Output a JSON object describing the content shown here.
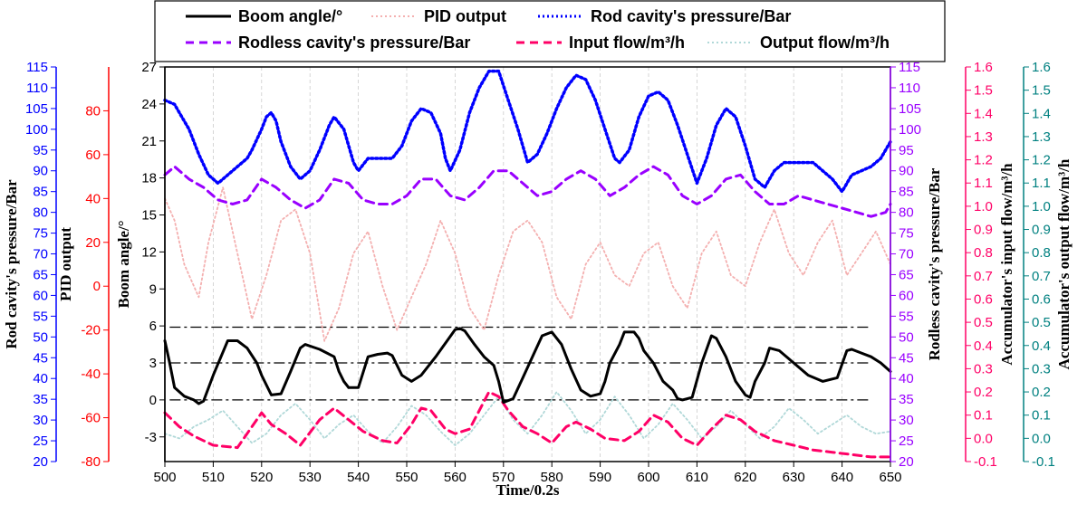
{
  "chart_data": {
    "type": "line",
    "xlabel": "Time/0.2s",
    "x_ticks": [
      500,
      510,
      520,
      530,
      540,
      550,
      560,
      570,
      580,
      590,
      600,
      610,
      620,
      630,
      640,
      650
    ],
    "xlim": [
      500,
      650
    ],
    "axes": [
      {
        "id": "boom",
        "label": "Boom angle/°",
        "side": "left",
        "color": "#000000",
        "ylim": [
          -5,
          27
        ],
        "ticks": [
          -3,
          0,
          3,
          6,
          9,
          12,
          15,
          18,
          21,
          24,
          27
        ]
      },
      {
        "id": "pid",
        "label": "PID output",
        "side": "left",
        "color": "#ff0000",
        "ylim": [
          -80,
          100
        ],
        "ticks": [
          -80,
          -60,
          -40,
          -20,
          0,
          20,
          40,
          60,
          80
        ]
      },
      {
        "id": "rod",
        "label": "Rod cavity's pressure/Bar",
        "side": "left",
        "color": "#0000ff",
        "ylim": [
          20,
          115
        ],
        "ticks": [
          20,
          25,
          30,
          35,
          40,
          45,
          50,
          55,
          60,
          65,
          70,
          75,
          80,
          85,
          90,
          95,
          100,
          105,
          110,
          115
        ]
      },
      {
        "id": "rodless",
        "label": "Rodless cavity's pressure/Bar",
        "side": "right",
        "color": "#9900ff",
        "ylim": [
          20,
          115
        ],
        "ticks": [
          20,
          25,
          30,
          35,
          40,
          45,
          50,
          55,
          60,
          65,
          70,
          75,
          80,
          85,
          90,
          95,
          100,
          105,
          110,
          115
        ]
      },
      {
        "id": "acc_in",
        "label": "Accumulator's input flow/m³/h",
        "side": "right",
        "color": "#ff0066",
        "ylim": [
          -0.1,
          1.6
        ],
        "ticks": [
          "-0.1",
          "0.0",
          "0.1",
          "0.2",
          "0.3",
          "0.4",
          "0.5",
          "0.6",
          "0.7",
          "0.8",
          "0.9",
          "1.0",
          "1.1",
          "1.2",
          "1.3",
          "1.4",
          "1.5",
          "1.6"
        ]
      },
      {
        "id": "acc_out",
        "label": "Accumulator's output flow/m³/h",
        "side": "right",
        "color": "#008080",
        "ylim": [
          -0.1,
          1.6
        ],
        "ticks": [
          "-0.1",
          "0.0",
          "0.1",
          "0.2",
          "0.3",
          "0.4",
          "0.5",
          "0.6",
          "0.7",
          "0.8",
          "0.9",
          "1.0",
          "1.1",
          "1.2",
          "1.3",
          "1.4",
          "1.5",
          "1.6"
        ]
      }
    ],
    "reference_lines": [
      {
        "axis": "boom",
        "y": 5.9
      },
      {
        "axis": "boom",
        "y": 3.0
      },
      {
        "axis": "boom",
        "y": 0.0
      }
    ],
    "legend": {
      "placement": "top-center",
      "entries": [
        {
          "series": "Boom angle/°",
          "style": "solid",
          "color": "#000000"
        },
        {
          "series": "PID output",
          "style": "dotted",
          "color": "#f4b0b0"
        },
        {
          "series": "Rod cavity's pressure/Bar",
          "style": "dotted",
          "color": "#0000ff"
        },
        {
          "series": "Rodless cavity's pressure/Bar",
          "style": "dash",
          "color": "#9900ff"
        },
        {
          "series": "Input flow/m³/h",
          "style": "dash",
          "color": "#ff0066"
        },
        {
          "series": "Output flow/m³/h",
          "style": "dotted",
          "color": "#b0d8d8"
        }
      ]
    },
    "series": [
      {
        "name": "Boom angle/°",
        "axis": "boom",
        "color": "#000000",
        "style": "solid",
        "x": [
          500,
          501,
          502,
          504,
          506,
          507,
          508,
          510,
          513,
          515,
          517,
          519,
          520,
          522,
          524,
          526,
          528,
          529,
          532,
          535,
          536,
          537,
          538,
          540,
          542,
          544,
          546,
          547,
          549,
          551,
          553,
          556,
          558,
          560,
          561,
          562,
          564,
          566,
          568,
          569,
          570,
          572,
          574,
          576,
          578,
          580,
          582,
          584,
          586,
          588,
          590,
          591,
          592,
          594,
          595,
          597,
          598,
          599,
          601,
          603,
          605,
          606,
          607,
          609,
          611,
          613,
          614,
          616,
          618,
          620,
          621,
          622,
          624,
          625,
          627,
          630,
          633,
          636,
          639,
          641,
          642,
          644,
          646,
          648,
          650
        ],
        "y": [
          4.8,
          3.0,
          1.0,
          0.3,
          0.0,
          -0.3,
          -0.1,
          2.0,
          4.8,
          4.8,
          4.2,
          3.0,
          2.0,
          0.4,
          0.5,
          2.3,
          4.2,
          4.5,
          4.1,
          3.5,
          2.3,
          1.5,
          1.0,
          1.0,
          3.5,
          3.7,
          3.8,
          3.6,
          2.0,
          1.5,
          2.0,
          3.5,
          4.6,
          5.7,
          5.8,
          5.6,
          4.5,
          3.5,
          2.8,
          1.5,
          -0.2,
          0.1,
          1.8,
          3.5,
          5.2,
          5.5,
          4.5,
          2.5,
          0.8,
          0.3,
          0.5,
          1.5,
          3.0,
          4.5,
          5.5,
          5.5,
          5.0,
          4.0,
          3.0,
          1.5,
          0.8,
          0.1,
          0.0,
          0.2,
          3.0,
          5.2,
          5.0,
          3.5,
          1.5,
          0.4,
          0.2,
          1.5,
          3.0,
          4.2,
          4.0,
          3.0,
          2.0,
          1.5,
          1.8,
          4.0,
          4.1,
          3.8,
          3.5,
          3.0,
          2.3
        ]
      },
      {
        "name": "PID output",
        "axis": "pid",
        "color": "#f4b0b0",
        "style": "dotted",
        "x": [
          500,
          502,
          504,
          507,
          509,
          512,
          515,
          518,
          521,
          524,
          527,
          530,
          533,
          536,
          539,
          542,
          545,
          548,
          551,
          554,
          557,
          560,
          563,
          566,
          569,
          572,
          575,
          578,
          581,
          584,
          587,
          590,
          593,
          596,
          599,
          602,
          605,
          608,
          611,
          614,
          617,
          620,
          623,
          626,
          629,
          632,
          635,
          638,
          641,
          644,
          647,
          650
        ],
        "y": [
          40,
          30,
          10,
          -5,
          20,
          45,
          15,
          -15,
          5,
          30,
          35,
          15,
          -25,
          -10,
          15,
          25,
          0,
          -20,
          -5,
          10,
          30,
          15,
          -10,
          -20,
          5,
          25,
          30,
          20,
          -5,
          -15,
          10,
          20,
          5,
          0,
          15,
          20,
          0,
          -10,
          15,
          25,
          5,
          0,
          20,
          35,
          15,
          5,
          20,
          30,
          5,
          15,
          25,
          10
        ]
      },
      {
        "name": "Rod cavity's pressure/Bar",
        "axis": "rod",
        "color": "#0000ff",
        "style": "dotted",
        "x": [
          500,
          502,
          503,
          505,
          507,
          509,
          511,
          513,
          515,
          517,
          518,
          520,
          521,
          522,
          523,
          524,
          526,
          528,
          530,
          532,
          534,
          535,
          537,
          539,
          540,
          542,
          545,
          547,
          549,
          551,
          553,
          555,
          557,
          558,
          559,
          561,
          563,
          565,
          567,
          569,
          571,
          573,
          575,
          577,
          579,
          581,
          583,
          585,
          587,
          589,
          591,
          593,
          594,
          596,
          598,
          600,
          602,
          604,
          606,
          608,
          610,
          612,
          614,
          616,
          618,
          620,
          622,
          624,
          626,
          628,
          630,
          632,
          634,
          636,
          638,
          640,
          642,
          644,
          646,
          648,
          650
        ],
        "y": [
          107,
          106,
          104,
          100,
          94,
          89,
          87,
          89,
          91,
          93,
          95,
          100,
          103,
          104,
          102,
          97,
          91,
          88,
          90,
          95,
          101,
          103,
          100,
          92,
          90,
          93,
          93,
          93,
          96,
          102,
          105,
          104,
          99,
          93,
          90,
          95,
          104,
          110,
          114,
          114,
          107,
          100,
          92,
          94,
          99,
          105,
          110,
          113,
          112,
          107,
          100,
          93,
          92,
          95,
          103,
          108,
          109,
          107,
          101,
          94,
          87,
          93,
          101,
          105,
          103,
          96,
          88,
          86,
          90,
          92,
          92,
          92,
          92,
          90,
          88,
          85,
          89,
          90,
          91,
          93,
          97
        ]
      },
      {
        "name": "Rodless cavity's pressure/Bar",
        "axis": "rodless",
        "color": "#9900ff",
        "style": "dash",
        "x": [
          500,
          502,
          505,
          508,
          511,
          514,
          517,
          520,
          523,
          526,
          529,
          532,
          535,
          538,
          541,
          544,
          547,
          550,
          553,
          556,
          559,
          562,
          565,
          568,
          571,
          574,
          577,
          580,
          583,
          586,
          589,
          592,
          595,
          598,
          601,
          604,
          607,
          610,
          613,
          616,
          619,
          622,
          625,
          628,
          631,
          634,
          637,
          640,
          643,
          646,
          649,
          650
        ],
        "y": [
          89,
          91,
          88,
          86,
          83,
          82,
          83,
          88,
          86,
          83,
          81,
          83,
          88,
          87,
          83,
          82,
          82,
          84,
          88,
          88,
          84,
          83,
          86,
          90,
          90,
          87,
          84,
          85,
          88,
          90,
          88,
          84,
          86,
          89,
          91,
          89,
          84,
          82,
          84,
          88,
          89,
          85,
          82,
          82,
          84,
          83,
          82,
          81,
          80,
          79,
          80,
          82
        ]
      },
      {
        "name": "Input flow/m³/h",
        "axis": "acc_in",
        "color": "#ff0066",
        "style": "dash",
        "x": [
          500,
          503,
          506,
          510,
          515,
          518,
          520,
          522,
          525,
          528,
          532,
          535,
          538,
          541,
          545,
          548,
          551,
          553,
          555,
          558,
          560,
          563,
          567,
          569,
          571,
          574,
          577,
          580,
          583,
          585,
          588,
          591,
          595,
          598,
          601,
          604,
          607,
          610,
          613,
          616,
          619,
          622,
          626,
          630,
          634,
          638,
          642,
          646,
          650
        ],
        "y": [
          0.11,
          0.05,
          0.01,
          -0.03,
          -0.04,
          0.05,
          0.11,
          0.06,
          0.02,
          -0.03,
          0.08,
          0.13,
          0.08,
          0.03,
          -0.01,
          -0.02,
          0.06,
          0.13,
          0.12,
          0.04,
          0.02,
          0.04,
          0.2,
          0.18,
          0.12,
          0.05,
          0.02,
          -0.02,
          0.05,
          0.07,
          0.04,
          0.0,
          -0.01,
          0.03,
          0.1,
          0.07,
          0.0,
          -0.03,
          0.04,
          0.1,
          0.08,
          0.03,
          -0.01,
          -0.03,
          -0.05,
          -0.06,
          -0.07,
          -0.08,
          -0.08
        ]
      },
      {
        "name": "Output flow/m³/h",
        "axis": "acc_out",
        "color": "#b0d8d8",
        "style": "dotted",
        "x": [
          500,
          503,
          506,
          509,
          512,
          515,
          518,
          521,
          524,
          527,
          530,
          533,
          536,
          539,
          542,
          545,
          548,
          551,
          554,
          557,
          560,
          563,
          566,
          569,
          572,
          575,
          578,
          581,
          584,
          587,
          590,
          593,
          596,
          599,
          602,
          605,
          608,
          611,
          614,
          617,
          620,
          623,
          626,
          629,
          632,
          635,
          638,
          641,
          644,
          647,
          650
        ],
        "y": [
          0.02,
          0.0,
          0.05,
          0.08,
          0.12,
          0.05,
          -0.02,
          0.02,
          0.1,
          0.15,
          0.08,
          0.0,
          0.06,
          0.1,
          0.03,
          -0.02,
          0.05,
          0.14,
          0.1,
          0.03,
          -0.03,
          0.02,
          0.1,
          0.18,
          0.08,
          0.02,
          0.1,
          0.2,
          0.12,
          0.02,
          0.08,
          0.18,
          0.1,
          0.0,
          0.06,
          0.15,
          0.08,
          0.0,
          0.05,
          0.12,
          0.06,
          0.0,
          0.05,
          0.13,
          0.08,
          0.02,
          0.06,
          0.1,
          0.05,
          0.02,
          0.03
        ]
      }
    ]
  }
}
